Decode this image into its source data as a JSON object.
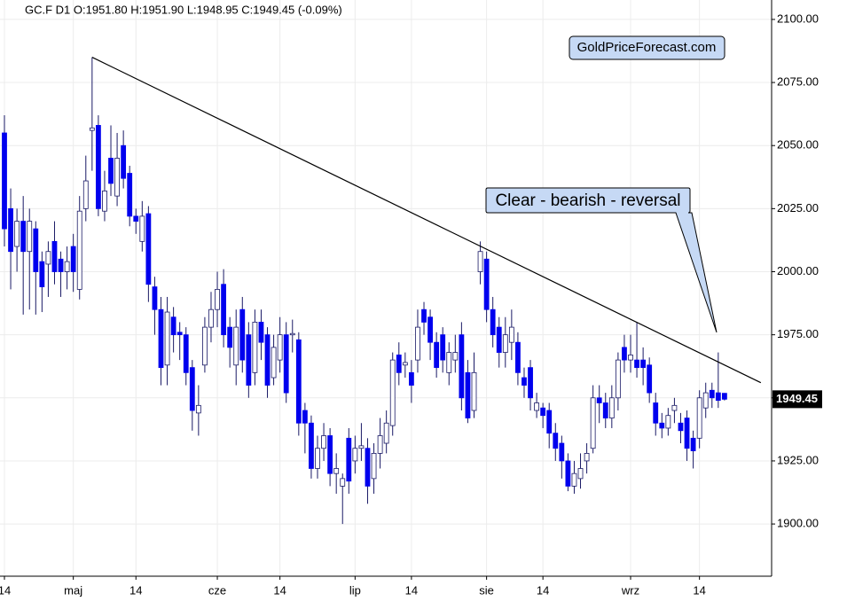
{
  "chart_data": {
    "type": "candlestick",
    "title": "GC.F  D1  O:1951.80  H:1951.90  L:1948.95  C:1949.45  (-0.09%)",
    "source": "GoldPriceForecast.com",
    "annotation": "Clear - bearish - reversal",
    "categories": [
      "14",
      null,
      null,
      null,
      null,
      null,
      null,
      null,
      null,
      null,
      null,
      "maj",
      null,
      null,
      null,
      null,
      null,
      null,
      null,
      null,
      null,
      "14",
      null,
      null,
      null,
      null,
      null,
      null,
      null,
      null,
      null,
      null,
      null,
      null,
      "cze",
      null,
      null,
      null,
      null,
      null,
      null,
      null,
      null,
      null,
      "14",
      null,
      null,
      null,
      null,
      null,
      null,
      null,
      null,
      null,
      null,
      null,
      "lip",
      null,
      null,
      null,
      null,
      null,
      null,
      null,
      null,
      "14",
      null,
      null,
      null,
      null,
      null,
      null,
      null,
      null,
      null,
      null,
      null,
      "sie",
      null,
      null,
      null,
      null,
      null,
      null,
      null,
      null,
      "14",
      null,
      null,
      null,
      null,
      null,
      null,
      null,
      null,
      null,
      null,
      null,
      null,
      null,
      "wrz",
      null,
      null,
      null,
      null,
      null,
      null,
      null,
      null,
      null,
      null,
      "14",
      null,
      null,
      null,
      null
    ],
    "open": [
      2055,
      2025,
      2010,
      2020,
      2008,
      2017,
      2004,
      2003,
      2012,
      2005,
      2000,
      2010,
      1993,
      2025,
      2056,
      2058,
      2024,
      2045,
      2030,
      2050,
      2039,
      2022,
      2012,
      2023,
      1994,
      1985,
      1963,
      1982,
      1976,
      1975,
      1962,
      1944,
      1963,
      1978,
      1985,
      1995,
      1978,
      1963,
      1985,
      1975,
      1960,
      1980,
      1975,
      1958,
      1965,
      1975,
      1975,
      1973,
      1945,
      1940,
      1922,
      1930,
      1935,
      1920,
      1915,
      1934,
      1925,
      1930,
      1930,
      1918,
      1928,
      1932,
      1939,
      1967,
      1963,
      1960,
      1965,
      1985,
      1982,
      1972,
      1975,
      1960,
      1965,
      1975,
      1960,
      1945,
      2000,
      2005,
      1985,
      1978,
      1968,
      1972,
      1972,
      1958,
      1962,
      1945,
      1946,
      1945,
      1936,
      1932,
      1925,
      1915,
      1918,
      1925,
      1930,
      1950,
      1948,
      1942,
      1950,
      1970,
      1965,
      1965,
      1965,
      1963,
      1948,
      1940,
      1938,
      1945,
      1940,
      1942,
      1934,
      1934,
      1946,
      1953,
      1952,
      1951.8
    ],
    "high": [
      2062,
      2033,
      2025,
      2030,
      2025,
      2020,
      2008,
      2012,
      2020,
      2008,
      2010,
      2015,
      2030,
      2046,
      2085,
      2062,
      2040,
      2058,
      2055,
      2056,
      2042,
      2025,
      2028,
      2026,
      1998,
      1990,
      1990,
      1986,
      1980,
      1978,
      1965,
      1955,
      1982,
      1992,
      2000,
      2001,
      1982,
      1985,
      1990,
      1980,
      1985,
      1985,
      1978,
      1975,
      1982,
      1980,
      1981,
      1976,
      1948,
      1943,
      1935,
      1940,
      1938,
      1928,
      1920,
      1938,
      1935,
      1940,
      1934,
      1932,
      1942,
      1945,
      1968,
      1972,
      1968,
      1965,
      1985,
      1988,
      1985,
      1976,
      1978,
      1972,
      1975,
      1980,
      1965,
      1968,
      2012,
      2008,
      1990,
      1982,
      1982,
      1985,
      1976,
      1962,
      1965,
      1952,
      1948,
      1948,
      1940,
      1935,
      1928,
      1925,
      1928,
      1932,
      1955,
      1955,
      1952,
      1955,
      1968,
      1975,
      1975,
      1980,
      1970,
      1966,
      1952,
      1944,
      1946,
      1950,
      1944,
      1945,
      1937,
      1953,
      1956,
      1956,
      1968,
      1951.9
    ],
    "low": [
      2010,
      1993,
      2000,
      1983,
      1985,
      1983,
      1984,
      1990,
      1995,
      1990,
      1993,
      1992,
      1989,
      2020,
      2040,
      2022,
      2020,
      2030,
      2026,
      2033,
      2018,
      2015,
      2008,
      1988,
      1975,
      1955,
      1955,
      1968,
      1965,
      1955,
      1937,
      1935,
      1960,
      1972,
      1978,
      1970,
      1962,
      1955,
      1960,
      1950,
      1955,
      1965,
      1950,
      1955,
      1960,
      1948,
      1968,
      1935,
      1928,
      1918,
      1918,
      1925,
      1915,
      1912,
      1900,
      1912,
      1920,
      1925,
      1908,
      1912,
      1922,
      1928,
      1935,
      1955,
      1958,
      1948,
      1960,
      1975,
      1965,
      1958,
      1960,
      1955,
      1960,
      1945,
      1940,
      1942,
      1995,
      1980,
      1970,
      1962,
      1962,
      1965,
      1955,
      1950,
      1945,
      1942,
      1938,
      1930,
      1925,
      1918,
      1913,
      1912,
      1914,
      1920,
      1928,
      1940,
      1938,
      1938,
      1945,
      1960,
      1960,
      1958,
      1955,
      1948,
      1935,
      1934,
      1935,
      1940,
      1932,
      1925,
      1922,
      1930,
      1942,
      1946,
      1946,
      1948.95
    ],
    "close": [
      2017,
      2008,
      2020,
      2008,
      2020,
      2000,
      1994,
      2008,
      2000,
      2000,
      2004,
      2000,
      2024,
      2036,
      2057,
      2025,
      2032,
      2035,
      2045,
      2037,
      2022,
      2020,
      2022,
      1995,
      1985,
      1962,
      1984,
      1975,
      1975,
      1960,
      1945,
      1947,
      1978,
      1985,
      1993,
      1975,
      1970,
      1978,
      1965,
      1955,
      1980,
      1972,
      1955,
      1970,
      1975,
      1952,
      1975.5,
      1940,
      1940,
      1922,
      1930,
      1935,
      1920,
      1922,
      1918,
      1917,
      1930,
      1931,
      1915,
      1928,
      1935,
      1940,
      1965,
      1960,
      1964,
      1955,
      1978,
      1980,
      1972,
      1962,
      1965,
      1968,
      1968,
      1950,
      1942,
      1960,
      2008,
      1985,
      1975,
      1968,
      1975,
      1978,
      1960,
      1955,
      1950,
      1948,
      1943,
      1936,
      1930,
      1925,
      1915,
      1920,
      1922,
      1928,
      1950,
      1948,
      1942,
      1950,
      1965,
      1965,
      1967,
      1962,
      1962,
      1952,
      1940,
      1938,
      1943,
      1947,
      1937,
      1930,
      1929,
      1950,
      1952,
      1950,
      1949,
      1949.45
    ],
    "up_color": "#ffffff",
    "down_color": "#0000ee",
    "last_price": 1949.45,
    "trendline": {
      "x": [
        14,
        120.8
      ],
      "y": [
        2085,
        1956
      ],
      "color": "#000000"
    },
    "ylim": [
      1879.3,
      2107.7
    ],
    "yticks": [
      {
        "value": 1900,
        "label": "1900.00"
      },
      {
        "value": 1925,
        "label": "1925.00"
      },
      {
        "value": 1950,
        "label": "1950.00"
      },
      {
        "value": 1975,
        "label": "1975.00"
      },
      {
        "value": 2000,
        "label": "2000.00"
      },
      {
        "value": 2025,
        "label": "2025.00"
      },
      {
        "value": 2050,
        "label": "2050.00"
      },
      {
        "value": 2075,
        "label": "2075.00"
      },
      {
        "value": 2100,
        "label": "2100.00"
      }
    ],
    "grid": true
  }
}
